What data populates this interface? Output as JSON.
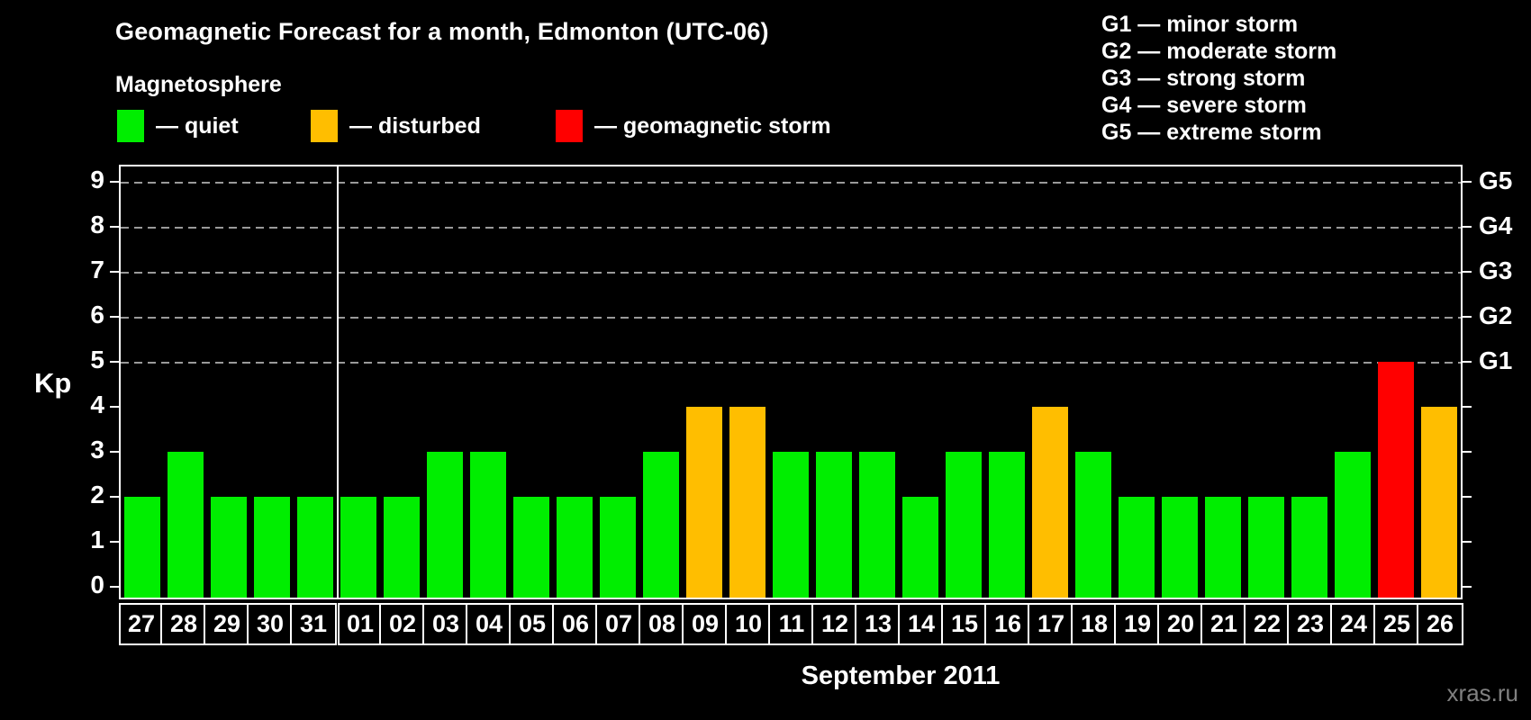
{
  "title": "Geomagnetic Forecast for a month, Edmonton (UTC-06)",
  "legend": {
    "heading": "Magnetosphere",
    "items": [
      {
        "name": "quiet",
        "label": "— quiet",
        "color": "#00EE00"
      },
      {
        "name": "disturbed",
        "label": "— disturbed",
        "color": "#FFBE00"
      },
      {
        "name": "storm",
        "label": "— geomagnetic storm",
        "color": "#FF0000"
      }
    ]
  },
  "storm_scale_legend": {
    "line1": "G1 — minor storm",
    "line2": "G2 — moderate storm",
    "line3": "G3 — strong storm",
    "line4": "G4 — severe storm",
    "line5": "G5 — extreme storm"
  },
  "watermark": "xras.ru",
  "chart_data": {
    "type": "bar",
    "title": "Geomagnetic Forecast for a month, Edmonton (UTC-06)",
    "xlabel": "September 2011",
    "ylabel": "Kp",
    "ylim": [
      0,
      9
    ],
    "yticks": [
      0,
      1,
      2,
      3,
      4,
      5,
      6,
      7,
      8,
      9
    ],
    "gridlines_at": [
      5,
      6,
      7,
      8,
      9
    ],
    "grid_style": "dashed",
    "legend_position": "top",
    "right_axis_labels": [
      {
        "label": "G1",
        "kp": 5
      },
      {
        "label": "G2",
        "kp": 6
      },
      {
        "label": "G3",
        "kp": 7
      },
      {
        "label": "G4",
        "kp": 8
      },
      {
        "label": "G5",
        "kp": 9
      }
    ],
    "month_separator_after_index": 4,
    "categories": [
      "27",
      "28",
      "29",
      "30",
      "31",
      "01",
      "02",
      "03",
      "04",
      "05",
      "06",
      "07",
      "08",
      "09",
      "10",
      "11",
      "12",
      "13",
      "14",
      "15",
      "16",
      "17",
      "18",
      "19",
      "20",
      "21",
      "22",
      "23",
      "24",
      "25",
      "26"
    ],
    "values": [
      2,
      3,
      2,
      2,
      2,
      2,
      2,
      3,
      3,
      2,
      2,
      2,
      3,
      4,
      4,
      3,
      3,
      3,
      2,
      3,
      3,
      4,
      3,
      2,
      2,
      2,
      2,
      2,
      3,
      5,
      4
    ],
    "statuses": [
      "quiet",
      "quiet",
      "quiet",
      "quiet",
      "quiet",
      "quiet",
      "quiet",
      "quiet",
      "quiet",
      "quiet",
      "quiet",
      "quiet",
      "quiet",
      "disturbed",
      "disturbed",
      "quiet",
      "quiet",
      "quiet",
      "quiet",
      "quiet",
      "quiet",
      "disturbed",
      "quiet",
      "quiet",
      "quiet",
      "quiet",
      "quiet",
      "quiet",
      "quiet",
      "storm",
      "disturbed"
    ]
  }
}
